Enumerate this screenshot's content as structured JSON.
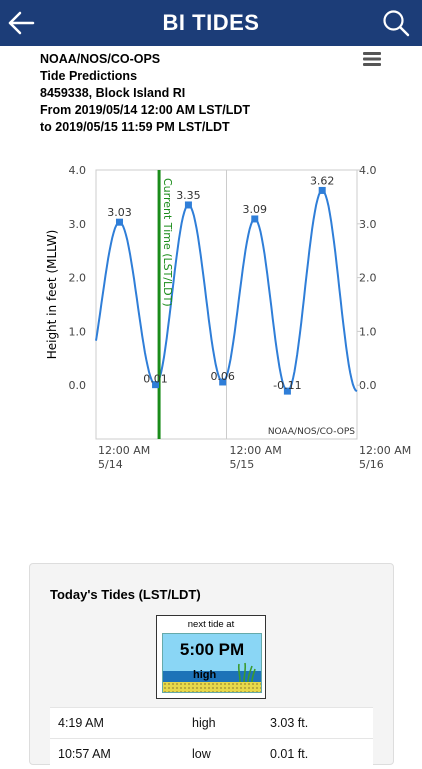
{
  "app": {
    "title": "BI TIDES",
    "back_icon": "back-arrow-icon",
    "search_icon": "search-icon",
    "bar_color": "#1c3d78"
  },
  "header": {
    "line1": "NOAA/NOS/CO-OPS",
    "line2": "Tide Predictions",
    "line3": "8459338, Block Island RI",
    "line4": "From 2019/05/14 12:00 AM LST/LDT",
    "line5": "to 2019/05/15 11:59 PM LST/LDT",
    "menu_icon": "hamburger-menu-icon"
  },
  "chart_data": {
    "type": "line",
    "ylabel": "Height in feet (MLLW)",
    "ylim": [
      -1.0,
      4.0
    ],
    "yticks": [
      "4.0",
      "3.0",
      "2.0",
      "1.0",
      "0.0"
    ],
    "ytick_values": [
      4,
      3,
      2,
      1,
      0
    ],
    "x_range_hours": [
      0,
      48
    ],
    "xticks": [
      {
        "hour": 0,
        "line1": "12:00 AM",
        "line2": "5/14"
      },
      {
        "hour": 24,
        "line1": "12:00 AM",
        "line2": "5/15"
      },
      {
        "hour": 48,
        "line1": "12:00 AM",
        "line2": "5/16"
      }
    ],
    "extremes": [
      {
        "hour": 4.32,
        "value": 3.03,
        "label": "3.03"
      },
      {
        "hour": 10.95,
        "value": 0.01,
        "label": "0.01"
      },
      {
        "hour": 17.0,
        "value": 3.35,
        "label": "3.35"
      },
      {
        "hour": 23.3,
        "value": 0.06,
        "label": "0.06"
      },
      {
        "hour": 29.2,
        "value": 3.09,
        "label": "3.09"
      },
      {
        "hour": 35.2,
        "value": -0.11,
        "label": "-0.11"
      },
      {
        "hour": 41.6,
        "value": 3.62,
        "label": "3.62"
      }
    ],
    "current_time_hour": 11.6,
    "current_time_label": "Current Time (LST/LDT)",
    "current_time_color": "#1a8c1a",
    "series_color": "#2f7ed8",
    "credit": "NOAA/NOS/CO-OPS",
    "grid": true
  },
  "todays_tides": {
    "title": "Today's Tides (LST/LDT)",
    "next_tide": {
      "label": "next tide at",
      "time": "5:00 PM",
      "type": "high"
    },
    "rows": [
      {
        "time": "4:19 AM",
        "type": "high",
        "height": "3.03 ft."
      },
      {
        "time": "10:57 AM",
        "type": "low",
        "height": "0.01 ft."
      }
    ]
  }
}
